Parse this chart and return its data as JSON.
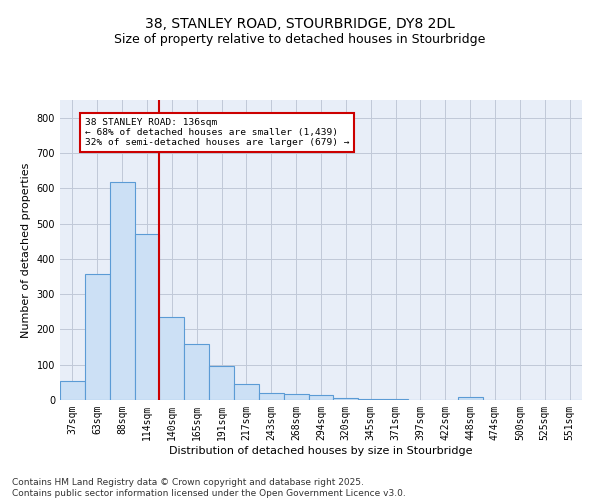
{
  "title_line1": "38, STANLEY ROAD, STOURBRIDGE, DY8 2DL",
  "title_line2": "Size of property relative to detached houses in Stourbridge",
  "xlabel": "Distribution of detached houses by size in Stourbridge",
  "ylabel": "Number of detached properties",
  "categories": [
    "37sqm",
    "63sqm",
    "88sqm",
    "114sqm",
    "140sqm",
    "165sqm",
    "191sqm",
    "217sqm",
    "243sqm",
    "268sqm",
    "294sqm",
    "320sqm",
    "345sqm",
    "371sqm",
    "397sqm",
    "422sqm",
    "448sqm",
    "474sqm",
    "500sqm",
    "525sqm",
    "551sqm"
  ],
  "values": [
    55,
    357,
    617,
    470,
    235,
    158,
    96,
    45,
    20,
    18,
    15,
    5,
    3,
    2,
    1,
    0,
    8,
    1,
    0,
    0,
    0
  ],
  "bar_color": "#cce0f5",
  "bar_edge_color": "#5b9bd5",
  "vline_index": 3.5,
  "vline_color": "#cc0000",
  "annotation_text": "38 STANLEY ROAD: 136sqm\n← 68% of detached houses are smaller (1,439)\n32% of semi-detached houses are larger (679) →",
  "annotation_box_color": "#cc0000",
  "ylim": [
    0,
    850
  ],
  "yticks": [
    0,
    100,
    200,
    300,
    400,
    500,
    600,
    700,
    800
  ],
  "grid_color": "#c0c8d8",
  "bg_color": "#e8eef8",
  "footnote": "Contains HM Land Registry data © Crown copyright and database right 2025.\nContains public sector information licensed under the Open Government Licence v3.0.",
  "title_fontsize": 10,
  "subtitle_fontsize": 9,
  "axis_label_fontsize": 8,
  "tick_fontsize": 7,
  "footnote_fontsize": 6.5
}
